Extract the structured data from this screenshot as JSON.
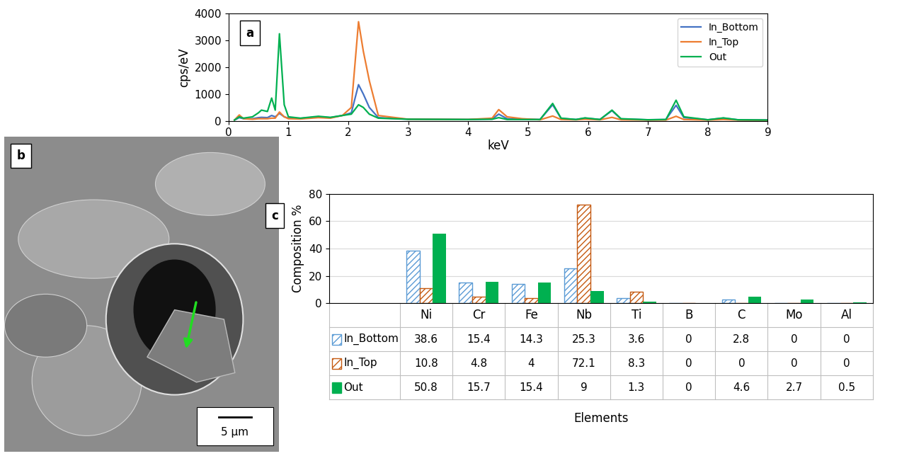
{
  "chart_data": [
    {
      "type": "line",
      "annotations": [
        "a"
      ],
      "x_label": "keV",
      "y_label": "cps/eV",
      "x": [
        0.1,
        0.18,
        0.25,
        0.4,
        0.5,
        0.55,
        0.65,
        0.72,
        0.78,
        0.85,
        0.93,
        1.0,
        1.2,
        1.5,
        1.7,
        1.9,
        2.05,
        2.17,
        2.25,
        2.35,
        2.5,
        3.0,
        4.0,
        4.4,
        4.51,
        4.65,
        4.9,
        5.2,
        5.41,
        5.55,
        5.8,
        5.95,
        6.2,
        6.4,
        6.55,
        7.0,
        7.3,
        7.47,
        7.6,
        8.0,
        8.26,
        8.5,
        9.0
      ],
      "series": [
        {
          "name": "In_Bottom",
          "color": "#4472c4",
          "values": [
            30,
            120,
            80,
            80,
            120,
            130,
            120,
            200,
            150,
            280,
            150,
            100,
            90,
            150,
            120,
            200,
            300,
            1350,
            1000,
            500,
            120,
            60,
            50,
            70,
            250,
            80,
            60,
            50,
            600,
            90,
            50,
            100,
            50,
            380,
            70,
            40,
            50,
            580,
            120,
            40,
            100,
            40,
            30
          ]
        },
        {
          "name": "In_Top",
          "color": "#ed7d31",
          "values": [
            30,
            220,
            80,
            60,
            80,
            80,
            80,
            100,
            100,
            330,
            150,
            80,
            70,
            120,
            100,
            200,
            500,
            3700,
            2600,
            1500,
            200,
            60,
            50,
            100,
            420,
            150,
            80,
            40,
            180,
            50,
            40,
            60,
            40,
            130,
            40,
            30,
            30,
            170,
            50,
            30,
            50,
            30,
            20
          ]
        },
        {
          "name": "Out",
          "color": "#00b050",
          "values": [
            30,
            150,
            100,
            150,
            300,
            400,
            350,
            850,
            400,
            3250,
            600,
            150,
            100,
            170,
            130,
            200,
            250,
            600,
            500,
            250,
            100,
            60,
            50,
            60,
            120,
            50,
            50,
            50,
            650,
            100,
            50,
            110,
            50,
            400,
            80,
            40,
            50,
            770,
            150,
            40,
            110,
            40,
            30
          ]
        }
      ],
      "xlim": [
        0,
        9
      ],
      "xticks": [
        0,
        1,
        2,
        3,
        4,
        5,
        6,
        7,
        8,
        9
      ],
      "ylim": [
        0,
        4000
      ],
      "yticks": [
        0,
        1000,
        2000,
        3000,
        4000
      ],
      "legend": "upper right",
      "grid": false
    },
    {
      "type": "bar",
      "annotations": [
        "c"
      ],
      "x_label": "Elements",
      "y_label": "Composition %",
      "categories": [
        "Ni",
        "Cr",
        "Fe",
        "Nb",
        "Ti",
        "B",
        "C",
        "Mo",
        "Al"
      ],
      "series": [
        {
          "name": "In_Bottom",
          "color": "#5b9bd5",
          "values": [
            38.6,
            15.4,
            14.3,
            25.3,
            3.6,
            0,
            2.8,
            0,
            0
          ]
        },
        {
          "name": "In_Top",
          "color": "#c55a11",
          "values": [
            10.8,
            4.8,
            4,
            72.1,
            8.3,
            0,
            0,
            0,
            0
          ]
        },
        {
          "name": "Out",
          "color": "#00b050",
          "values": [
            50.8,
            15.7,
            15.4,
            9,
            1.3,
            0,
            4.6,
            2.7,
            0.5
          ]
        }
      ],
      "ylim": [
        0,
        80
      ],
      "yticks": [
        0,
        20,
        40,
        60,
        80
      ],
      "grid": true,
      "data_labels": true
    }
  ],
  "image": {
    "label": "b",
    "scale_bar": "5 µm"
  }
}
